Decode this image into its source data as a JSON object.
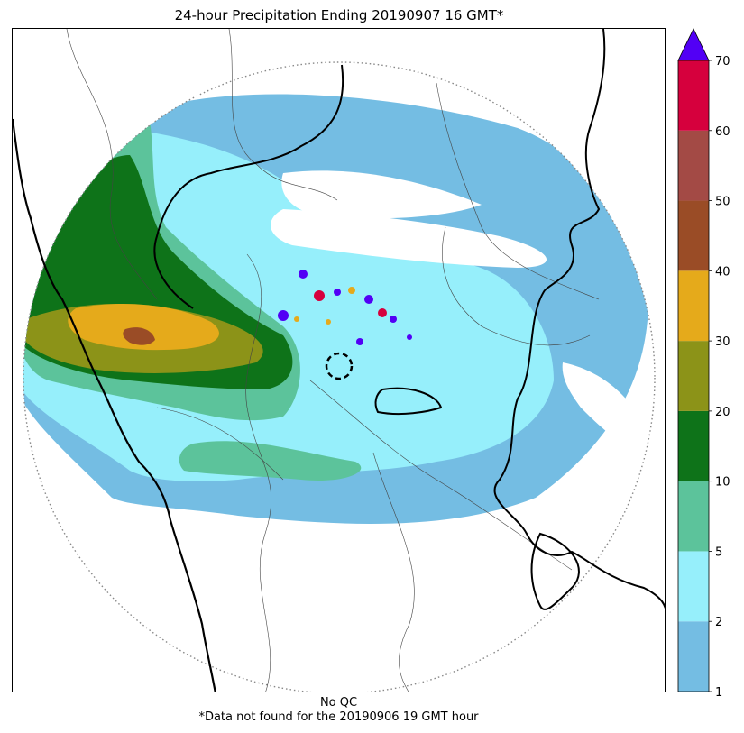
{
  "chart_data": {
    "type": "heatmap",
    "title": "24-hour Precipitation Ending 20190907 16 GMT*",
    "subtitle_lines": [
      "No QC",
      "*Data not found for the 20190906 19 GMT hour"
    ],
    "colorbar": {
      "levels": [
        1,
        2,
        5,
        10,
        20,
        30,
        40,
        50,
        60,
        70
      ],
      "tick_labels": [
        "1",
        "2",
        "5",
        "10",
        "20",
        "30",
        "40",
        "50",
        "60",
        "70"
      ],
      "colors": [
        "#74bde3",
        "#96effb",
        "#5cc39b",
        "#0e7319",
        "#8c9318",
        "#e5aa1b",
        "#9a4c26",
        "#a34a45",
        "#d6003d"
      ],
      "extend_color": "#5200f5",
      "extend": "max"
    },
    "overlays": [
      "radar range ring (dotted)",
      "radar site (dashed circle)",
      "state boundaries",
      "district boundaries",
      "coastline"
    ]
  }
}
